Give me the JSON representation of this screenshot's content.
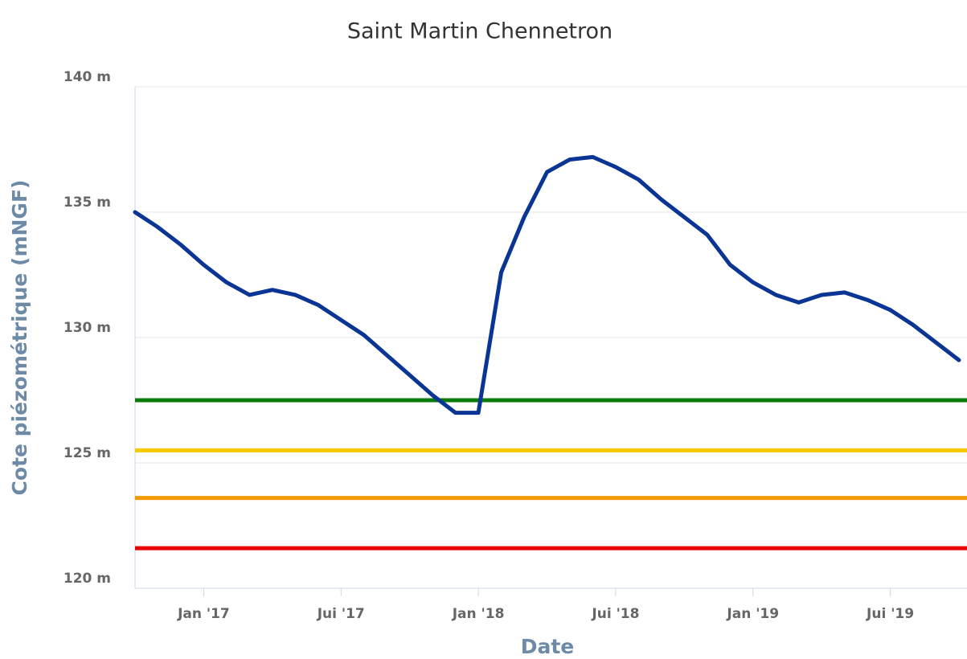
{
  "chart_data": {
    "type": "line",
    "title": "Saint Martin Chennetron",
    "x_label": "Date",
    "y_label": "Cote piézométrique (mNGF)",
    "x": [
      "2016-10",
      "2016-11",
      "2016-12",
      "2017-01",
      "2017-02",
      "2017-03",
      "2017-04",
      "2017-05",
      "2017-06",
      "2017-07",
      "2017-08",
      "2017-09",
      "2017-10",
      "2017-11",
      "2017-12",
      "2018-01",
      "2018-02",
      "2018-03",
      "2018-04",
      "2018-05",
      "2018-06",
      "2018-07",
      "2018-08",
      "2018-09",
      "2018-10",
      "2018-11",
      "2018-12",
      "2019-01",
      "2019-02",
      "2019-03",
      "2019-04",
      "2019-05",
      "2019-06",
      "2019-07",
      "2019-08",
      "2019-09",
      "2019-10"
    ],
    "series": [
      {
        "color": "#0b3594",
        "values": [
          135.0,
          134.4,
          133.7,
          132.9,
          132.2,
          131.7,
          131.9,
          131.7,
          131.3,
          130.7,
          130.1,
          129.3,
          128.5,
          127.7,
          127.0,
          127.0,
          132.6,
          134.8,
          136.6,
          137.1,
          137.2,
          136.8,
          136.3,
          135.5,
          134.8,
          134.1,
          132.9,
          132.2,
          131.7,
          131.4,
          131.7,
          131.8,
          131.5,
          131.1,
          130.5,
          129.8,
          129.1
        ]
      }
    ],
    "thresholds": [
      {
        "value": 127.5,
        "color": "#0a7a0a"
      },
      {
        "value": 125.5,
        "color": "#f5c800"
      },
      {
        "value": 123.6,
        "color": "#f59a00"
      },
      {
        "value": 121.6,
        "color": "#e80000"
      }
    ],
    "xlim": [
      "2016-10",
      "2019-10"
    ],
    "xticks": [
      {
        "value": "2017-01",
        "label": "Jan '17"
      },
      {
        "value": "2017-07",
        "label": "Jui '17"
      },
      {
        "value": "2018-01",
        "label": "Jan '18"
      },
      {
        "value": "2018-07",
        "label": "Jui '18"
      },
      {
        "value": "2019-01",
        "label": "Jan '19"
      },
      {
        "value": "2019-07",
        "label": "Jui '19"
      }
    ],
    "ylim": [
      120,
      140
    ],
    "yticks": [
      {
        "value": 120,
        "label": "120 m"
      },
      {
        "value": 125,
        "label": "125 m"
      },
      {
        "value": 130,
        "label": "130 m"
      },
      {
        "value": 135,
        "label": "135 m"
      },
      {
        "value": 140,
        "label": "140 m"
      }
    ],
    "grid": true
  }
}
